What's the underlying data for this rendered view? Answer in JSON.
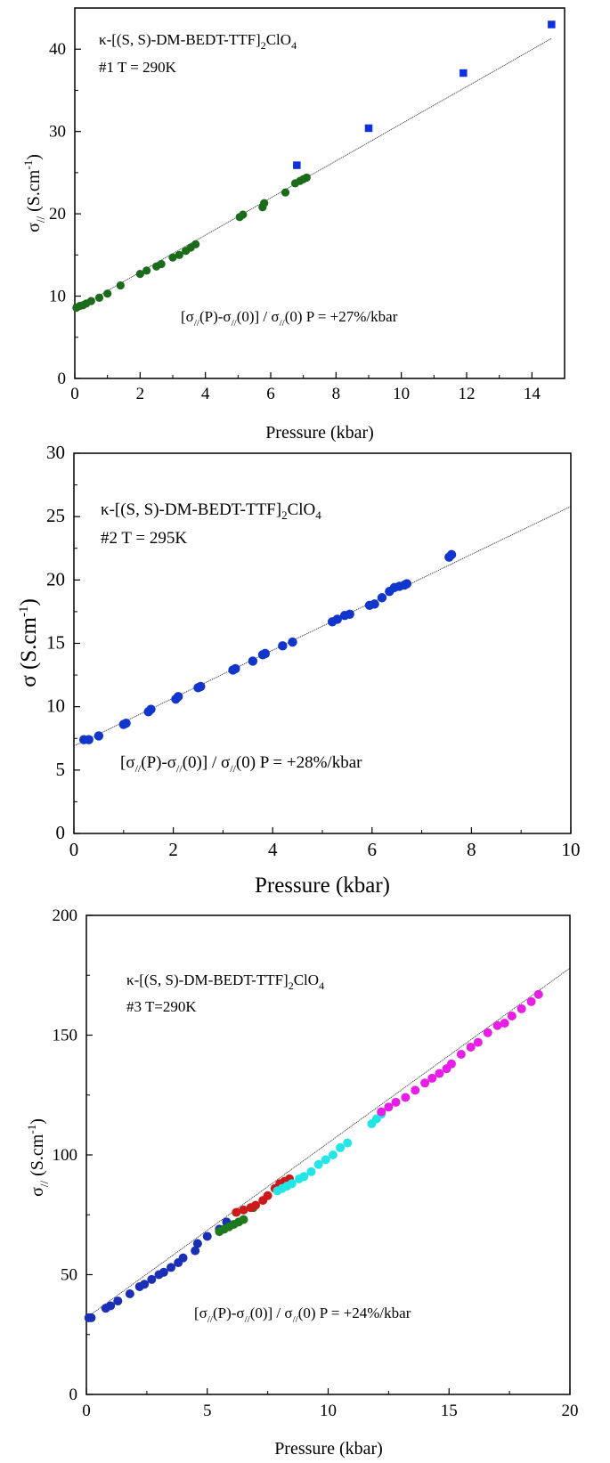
{
  "chart_data": [
    {
      "type": "scatter",
      "xlabel": "Pressure (kbar)",
      "ylabel": "σ// (S.cm-1)",
      "xlim": [
        0,
        15
      ],
      "ylim": [
        0,
        45
      ],
      "x_ticks": [
        "0",
        "2",
        "4",
        "6",
        "8",
        "10",
        "12",
        "14"
      ],
      "y_ticks": [
        "0",
        "10",
        "20",
        "30",
        "40"
      ],
      "annotation_compound": "κ-[(S, S)-DM-BEDT-TTF]2ClO4",
      "annotation_sample": "#1  T = 290K",
      "annotation_coefficient": "[σ//(P)-σ//(0)] / σ//(0) P = +27%/kbar",
      "fit_line": {
        "x": [
          0,
          14.6
        ],
        "y": [
          8.4,
          41.3
        ]
      },
      "series": [
        {
          "color": "#1a6b1a",
          "marker": "circle",
          "x": [
            0.05,
            0.15,
            0.25,
            0.35,
            0.5,
            0.75,
            1.0,
            1.4,
            2.0,
            2.2,
            2.5,
            2.65,
            3.0,
            3.2,
            3.4,
            3.55,
            3.7,
            5.05,
            5.15,
            5.75,
            5.8,
            6.45,
            6.75,
            6.9,
            7.0,
            7.1
          ],
          "y": [
            8.6,
            8.8,
            8.9,
            9.1,
            9.4,
            9.8,
            10.3,
            11.3,
            12.7,
            13.1,
            13.6,
            13.9,
            14.7,
            15.0,
            15.5,
            15.9,
            16.3,
            19.6,
            19.9,
            20.8,
            21.3,
            22.6,
            23.7,
            24.0,
            24.2,
            24.4
          ]
        },
        {
          "color": "#1030e0",
          "marker": "square",
          "x": [
            6.8,
            9.0,
            11.9,
            14.6
          ],
          "y": [
            25.9,
            30.4,
            37.1,
            43.0
          ]
        }
      ]
    },
    {
      "type": "scatter",
      "xlabel": "Pressure (kbar)",
      "ylabel": "σ (S.cm-1)",
      "xlim": [
        0,
        10
      ],
      "ylim": [
        0,
        30
      ],
      "x_ticks": [
        "0",
        "2",
        "4",
        "6",
        "8",
        "10"
      ],
      "y_ticks": [
        "0",
        "5",
        "10",
        "15",
        "20",
        "25",
        "30"
      ],
      "annotation_compound": "κ-[(S, S)-DM-BEDT-TTF]2ClO4",
      "annotation_sample": "#2  T = 295K",
      "annotation_coefficient": "[σ//(P)-σ//(0)] / σ//(0) P = +28%/kbar",
      "fit_line": {
        "x": [
          0,
          10
        ],
        "y": [
          6.9,
          25.8
        ]
      },
      "series": [
        {
          "color": "#1236cc",
          "marker": "circle",
          "x": [
            0.2,
            0.3,
            0.5,
            1.0,
            1.05,
            1.5,
            1.55,
            2.05,
            2.1,
            2.5,
            2.55,
            3.2,
            3.25,
            3.6,
            3.8,
            3.85,
            4.2,
            4.4,
            5.2,
            5.3,
            5.45,
            5.55,
            5.95,
            6.05,
            6.2,
            6.35,
            6.45,
            6.55,
            6.65,
            6.7,
            7.55,
            7.6
          ],
          "y": [
            7.4,
            7.4,
            7.7,
            8.6,
            8.7,
            9.6,
            9.8,
            10.6,
            10.8,
            11.5,
            11.6,
            12.9,
            13.0,
            13.6,
            14.1,
            14.2,
            14.8,
            15.1,
            16.7,
            16.9,
            17.2,
            17.3,
            18.0,
            18.1,
            18.6,
            19.1,
            19.4,
            19.5,
            19.6,
            19.7,
            21.8,
            22.0
          ]
        }
      ]
    },
    {
      "type": "scatter",
      "xlabel": "Pressure (kbar)",
      "ylabel": "σ// (S.cm-1)",
      "xlim": [
        0,
        20
      ],
      "ylim": [
        0,
        200
      ],
      "x_ticks": [
        "0",
        "5",
        "10",
        "15",
        "20"
      ],
      "y_ticks": [
        "0",
        "50",
        "100",
        "150",
        "200"
      ],
      "annotation_compound": "κ-[(S, S)-DM-BEDT-TTF]2ClO4",
      "annotation_sample": "#3  T=290K",
      "annotation_coefficient": "[σ//(P)-σ//(0)] / σ//(0) P = +24%/kbar",
      "fit_line": {
        "x": [
          0,
          20
        ],
        "y": [
          32,
          178
        ]
      },
      "series": [
        {
          "color": "#1a2fb5",
          "marker": "circle",
          "x": [
            0.1,
            0.2,
            0.8,
            1.0,
            1.3,
            1.8,
            2.2,
            2.4,
            2.7,
            3.0,
            3.2,
            3.5,
            3.8,
            4.0,
            4.5,
            4.6,
            5.0,
            5.5,
            5.8
          ],
          "y": [
            32,
            32,
            36,
            37,
            39,
            42,
            45,
            46,
            48,
            50,
            51,
            53,
            55,
            57,
            60,
            63,
            66,
            69,
            72
          ]
        },
        {
          "color": "#1f7a1f",
          "marker": "circle",
          "x": [
            5.5,
            5.7,
            5.9,
            6.1,
            6.3,
            6.5,
            6.9
          ],
          "y": [
            68,
            69,
            70,
            71,
            72,
            73,
            78
          ]
        },
        {
          "color": "#cc1a1a",
          "marker": "circle",
          "x": [
            6.2,
            6.5,
            6.8,
            7.0,
            7.3,
            7.5,
            7.8,
            8.0,
            8.2,
            8.4
          ],
          "y": [
            76,
            77,
            78,
            79,
            81,
            83,
            86,
            88,
            89,
            90
          ]
        },
        {
          "color": "#22e6e6",
          "marker": "circle",
          "x": [
            7.9,
            8.1,
            8.3,
            8.5,
            8.8,
            9.0,
            9.3,
            9.6,
            9.9,
            10.2,
            10.5,
            10.8,
            11.8,
            12.0,
            12.2
          ],
          "y": [
            85,
            86,
            87,
            88,
            90,
            91,
            93,
            96,
            98,
            100,
            103,
            105,
            113,
            115,
            117
          ]
        },
        {
          "color": "#e61ee6",
          "marker": "circle",
          "x": [
            12.2,
            12.5,
            12.8,
            13.2,
            13.6,
            14.0,
            14.3,
            14.6,
            14.9,
            15.1,
            15.5,
            15.9,
            16.2,
            16.6,
            17.0,
            17.3,
            17.6,
            18.0,
            18.4,
            18.7
          ],
          "y": [
            118,
            120,
            122,
            124,
            127,
            130,
            132,
            134,
            136,
            138,
            142,
            145,
            147,
            151,
            154,
            155,
            158,
            161,
            164,
            167
          ]
        }
      ]
    }
  ]
}
